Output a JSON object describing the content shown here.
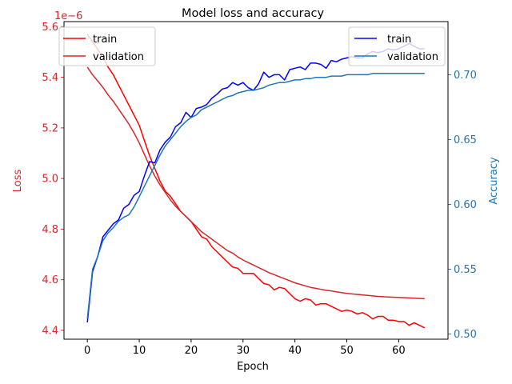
{
  "chart_data": {
    "type": "line",
    "title": "Model loss and accuracy",
    "xlabel": "Epoch",
    "xlim": [
      -4.5,
      69.5
    ],
    "xticks": [
      0,
      10,
      20,
      30,
      40,
      50,
      60
    ],
    "grid": false,
    "left_axis": {
      "label": "Loss",
      "color": "#d62728",
      "scale_note": "1e−6",
      "ylim": [
        4.365,
        5.62
      ],
      "ticks": [
        4.4,
        4.6,
        4.8,
        5.0,
        5.2,
        5.4,
        5.6
      ],
      "tick_labels": [
        "4.4",
        "4.6",
        "4.8",
        "5.0",
        "5.2",
        "5.4",
        "5.6"
      ],
      "legend_position": "upper-left",
      "series": [
        {
          "name": "train",
          "color": "#ff0000",
          "x": [
            0,
            1,
            2,
            3,
            4,
            5,
            6,
            7,
            8,
            9,
            10,
            11,
            12,
            13,
            14,
            15,
            16,
            17,
            18,
            19,
            20,
            21,
            22,
            23,
            24,
            25,
            26,
            27,
            28,
            29,
            30,
            31,
            32,
            33,
            34,
            35,
            36,
            37,
            38,
            39,
            40,
            41,
            42,
            43,
            44,
            45,
            46,
            47,
            48,
            49,
            50,
            51,
            52,
            53,
            54,
            55,
            56,
            57,
            58,
            59,
            60,
            61,
            62,
            63,
            64,
            65
          ],
          "y": [
            5.57,
            5.54,
            5.51,
            5.48,
            5.44,
            5.41,
            5.37,
            5.33,
            5.29,
            5.25,
            5.21,
            5.15,
            5.09,
            5.04,
            4.99,
            4.95,
            4.93,
            4.9,
            4.87,
            4.85,
            4.83,
            4.8,
            4.77,
            4.76,
            4.73,
            4.71,
            4.69,
            4.67,
            4.65,
            4.645,
            4.625,
            4.625,
            4.625,
            4.605,
            4.585,
            4.58,
            4.56,
            4.57,
            4.565,
            4.545,
            4.525,
            4.515,
            4.525,
            4.52,
            4.5,
            4.505,
            4.505,
            4.495,
            4.485,
            4.475,
            4.48,
            4.475,
            4.465,
            4.47,
            4.46,
            4.445,
            4.455,
            4.455,
            4.44,
            4.44,
            4.435,
            4.435,
            4.42,
            4.43,
            4.42,
            4.41
          ]
        },
        {
          "name": "validation",
          "color": "#d62728",
          "x": [
            0,
            1,
            2,
            3,
            4,
            5,
            6,
            7,
            8,
            9,
            10,
            11,
            12,
            13,
            14,
            15,
            16,
            17,
            18,
            19,
            20,
            21,
            22,
            23,
            24,
            25,
            26,
            27,
            28,
            29,
            30,
            31,
            32,
            33,
            34,
            35,
            36,
            37,
            38,
            39,
            40,
            41,
            42,
            43,
            44,
            45,
            46,
            47,
            48,
            49,
            50,
            51,
            52,
            53,
            54,
            55,
            56,
            57,
            58,
            59,
            60,
            61,
            62,
            63,
            64,
            65
          ],
          "y": [
            5.44,
            5.41,
            5.385,
            5.36,
            5.33,
            5.305,
            5.275,
            5.245,
            5.215,
            5.18,
            5.14,
            5.095,
            5.05,
            5.01,
            4.975,
            4.945,
            4.915,
            4.89,
            4.87,
            4.85,
            4.83,
            4.81,
            4.79,
            4.775,
            4.76,
            4.745,
            4.73,
            4.715,
            4.705,
            4.69,
            4.678,
            4.668,
            4.658,
            4.648,
            4.638,
            4.628,
            4.62,
            4.612,
            4.604,
            4.596,
            4.588,
            4.582,
            4.576,
            4.57,
            4.566,
            4.562,
            4.558,
            4.556,
            4.552,
            4.549,
            4.546,
            4.544,
            4.542,
            4.54,
            4.538,
            4.536,
            4.534,
            4.533,
            4.532,
            4.531,
            4.53,
            4.529,
            4.528,
            4.527,
            4.526,
            4.525
          ]
        }
      ]
    },
    "right_axis": {
      "label": "Accuracy",
      "color": "#1f77b4",
      "ylim": [
        0.496,
        0.741
      ],
      "ticks": [
        0.5,
        0.55,
        0.6,
        0.65,
        0.7
      ],
      "tick_labels": [
        "0.50",
        "0.55",
        "0.60",
        "0.65",
        "0.70"
      ],
      "legend_position": "upper-right",
      "series": [
        {
          "name": "train",
          "color": "#0000ff",
          "x": [
            0,
            1,
            2,
            3,
            4,
            5,
            6,
            7,
            8,
            9,
            10,
            11,
            12,
            13,
            14,
            15,
            16,
            17,
            18,
            19,
            20,
            21,
            22,
            23,
            24,
            25,
            26,
            27,
            28,
            29,
            30,
            31,
            32,
            33,
            34,
            35,
            36,
            37,
            38,
            39,
            40,
            41,
            42,
            43,
            44,
            45,
            46,
            47,
            48,
            49,
            50,
            51,
            52,
            53,
            54,
            55,
            56,
            57,
            58,
            59,
            60,
            61,
            62,
            63,
            64,
            65
          ],
          "y": [
            0.509,
            0.548,
            0.56,
            0.575,
            0.58,
            0.585,
            0.588,
            0.597,
            0.6,
            0.607,
            0.61,
            0.622,
            0.633,
            0.632,
            0.642,
            0.648,
            0.652,
            0.66,
            0.663,
            0.671,
            0.667,
            0.674,
            0.675,
            0.677,
            0.682,
            0.685,
            0.689,
            0.69,
            0.694,
            0.692,
            0.694,
            0.69,
            0.688,
            0.693,
            0.702,
            0.698,
            0.7,
            0.7,
            0.696,
            0.704,
            0.705,
            0.706,
            0.704,
            0.709,
            0.709,
            0.708,
            0.705,
            0.711,
            0.71,
            0.712,
            0.713,
            0.714,
            0.713,
            0.713,
            0.716,
            0.718,
            0.717,
            0.718,
            0.72,
            0.719,
            0.72,
            0.722,
            0.724,
            0.722,
            0.72,
            0.72
          ]
        },
        {
          "name": "validation",
          "color": "#1f77b4",
          "x": [
            0,
            1,
            2,
            3,
            4,
            5,
            6,
            7,
            8,
            9,
            10,
            11,
            12,
            13,
            14,
            15,
            16,
            17,
            18,
            19,
            20,
            21,
            22,
            23,
            24,
            25,
            26,
            27,
            28,
            29,
            30,
            31,
            32,
            33,
            34,
            35,
            36,
            37,
            38,
            39,
            40,
            41,
            42,
            43,
            44,
            45,
            46,
            47,
            48,
            49,
            50,
            51,
            52,
            53,
            54,
            55,
            56,
            57,
            58,
            59,
            60,
            61,
            62,
            63,
            64,
            65
          ],
          "y": [
            0.512,
            0.55,
            0.56,
            0.572,
            0.578,
            0.582,
            0.587,
            0.59,
            0.592,
            0.598,
            0.606,
            0.614,
            0.622,
            0.63,
            0.638,
            0.645,
            0.65,
            0.655,
            0.66,
            0.664,
            0.667,
            0.669,
            0.673,
            0.675,
            0.677,
            0.679,
            0.681,
            0.683,
            0.684,
            0.686,
            0.687,
            0.688,
            0.688,
            0.689,
            0.69,
            0.692,
            0.693,
            0.694,
            0.694,
            0.695,
            0.696,
            0.696,
            0.697,
            0.697,
            0.698,
            0.698,
            0.698,
            0.699,
            0.699,
            0.699,
            0.7,
            0.7,
            0.7,
            0.7,
            0.7,
            0.701,
            0.701,
            0.701,
            0.701,
            0.701,
            0.701,
            0.701,
            0.701,
            0.701,
            0.701,
            0.701
          ]
        }
      ]
    }
  }
}
